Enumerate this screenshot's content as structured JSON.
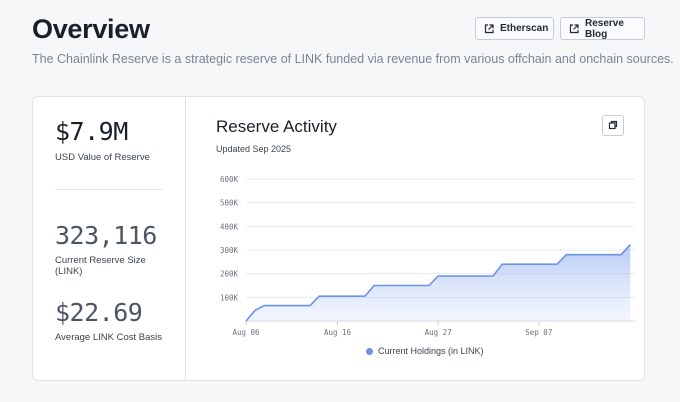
{
  "header": {
    "title": "Overview",
    "subtitle": "The Chainlink Reserve is a strategic reserve of LINK funded via revenue from various offchain and onchain sources.",
    "buttons": {
      "etherscan": "Etherscan",
      "blog": "Reserve Blog"
    }
  },
  "stats": [
    {
      "value": "$7.9M",
      "label": "USD Value of Reserve"
    },
    {
      "value": "323,116",
      "label": "Current Reserve Size (LINK)"
    },
    {
      "value": "$22.69",
      "label": "Average LINK Cost Basis"
    }
  ],
  "chart": {
    "title": "Reserve Activity",
    "updated": "Updated Sep 2025"
  },
  "chart_data": {
    "type": "area",
    "title": "Reserve Activity",
    "xlabel": "",
    "ylabel": "",
    "ylim": [
      0,
      600000
    ],
    "yticks": [
      "100K",
      "200K",
      "300K",
      "400K",
      "500K",
      "600K"
    ],
    "xticks": [
      "Aug 06",
      "Aug 16",
      "Aug 27",
      "Sep 07"
    ],
    "grid": true,
    "legend": "bottom",
    "series": [
      {
        "name": "Current Holdings (in LINK)",
        "color": "#6b93e6",
        "x": [
          "2025-08-06",
          "2025-08-07",
          "2025-08-08",
          "2025-08-13",
          "2025-08-14",
          "2025-08-19",
          "2025-08-20",
          "2025-08-26",
          "2025-08-27",
          "2025-09-02",
          "2025-09-03",
          "2025-09-09",
          "2025-09-10",
          "2025-09-16",
          "2025-09-17"
        ],
        "values": [
          0,
          45000,
          65000,
          65000,
          105000,
          105000,
          150000,
          150000,
          190000,
          190000,
          240000,
          240000,
          280000,
          280000,
          323116
        ]
      }
    ]
  }
}
